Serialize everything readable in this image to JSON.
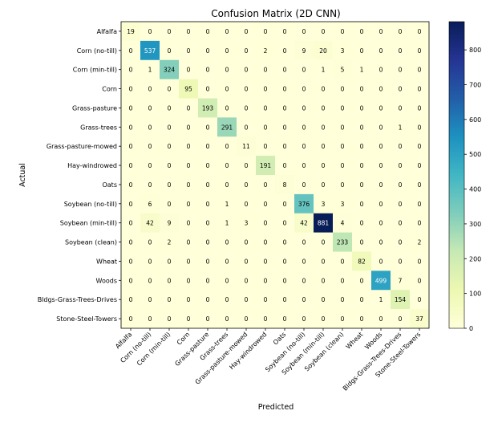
{
  "chart_data": {
    "type": "heatmap",
    "title": "Confusion Matrix (2D CNN)",
    "xlabel": "Predicted",
    "ylabel": "Actual",
    "labels": [
      "Alfalfa",
      "Corn (no-till)",
      "Corn (min-till)",
      "Corn",
      "Grass-pasture",
      "Grass-trees",
      "Grass-pasture-mowed",
      "Hay-windrowed",
      "Oats",
      "Soybean (no-till)",
      "Soybean (min-till)",
      "Soybean (clean)",
      "Wheat",
      "Woods",
      "Bldgs-Grass-Trees-Drives",
      "Stone-Steel-Towers"
    ],
    "matrix": [
      [
        19,
        0,
        0,
        0,
        0,
        0,
        0,
        0,
        0,
        0,
        0,
        0,
        0,
        0,
        0,
        0
      ],
      [
        0,
        537,
        0,
        0,
        0,
        0,
        0,
        2,
        0,
        9,
        20,
        3,
        0,
        0,
        0,
        0
      ],
      [
        0,
        1,
        324,
        0,
        0,
        0,
        0,
        0,
        0,
        0,
        1,
        5,
        1,
        0,
        0,
        0
      ],
      [
        0,
        0,
        0,
        95,
        0,
        0,
        0,
        0,
        0,
        0,
        0,
        0,
        0,
        0,
        0,
        0
      ],
      [
        0,
        0,
        0,
        0,
        193,
        0,
        0,
        0,
        0,
        0,
        0,
        0,
        0,
        0,
        0,
        0
      ],
      [
        0,
        0,
        0,
        0,
        0,
        291,
        0,
        0,
        0,
        0,
        0,
        0,
        0,
        0,
        1,
        0
      ],
      [
        0,
        0,
        0,
        0,
        0,
        0,
        11,
        0,
        0,
        0,
        0,
        0,
        0,
        0,
        0,
        0
      ],
      [
        0,
        0,
        0,
        0,
        0,
        0,
        0,
        191,
        0,
        0,
        0,
        0,
        0,
        0,
        0,
        0
      ],
      [
        0,
        0,
        0,
        0,
        0,
        0,
        0,
        0,
        8,
        0,
        0,
        0,
        0,
        0,
        0,
        0
      ],
      [
        0,
        6,
        0,
        0,
        0,
        1,
        0,
        0,
        0,
        376,
        3,
        3,
        0,
        0,
        0,
        0
      ],
      [
        0,
        42,
        9,
        0,
        0,
        1,
        3,
        0,
        0,
        42,
        881,
        4,
        0,
        0,
        0,
        0
      ],
      [
        0,
        0,
        2,
        0,
        0,
        0,
        0,
        0,
        0,
        0,
        0,
        233,
        0,
        0,
        0,
        2
      ],
      [
        0,
        0,
        0,
        0,
        0,
        0,
        0,
        0,
        0,
        0,
        0,
        0,
        82,
        0,
        0,
        0
      ],
      [
        0,
        0,
        0,
        0,
        0,
        0,
        0,
        0,
        0,
        0,
        0,
        0,
        0,
        499,
        7,
        0
      ],
      [
        0,
        0,
        0,
        0,
        0,
        0,
        0,
        0,
        0,
        0,
        0,
        0,
        0,
        1,
        154,
        0
      ],
      [
        0,
        0,
        0,
        0,
        0,
        0,
        0,
        0,
        0,
        0,
        0,
        0,
        0,
        0,
        0,
        37
      ]
    ],
    "colormap": "YlGnBu",
    "color_range": [
      0,
      881
    ],
    "colorbar_ticks": [
      0,
      100,
      200,
      300,
      400,
      500,
      600,
      700,
      800
    ],
    "colors": [
      "#ffffd9",
      "#edf8b1",
      "#c7e9b4",
      "#7fcdbb",
      "#41b6c4",
      "#1d91c0",
      "#225ea8",
      "#253494",
      "#081d58"
    ],
    "grid": false
  }
}
